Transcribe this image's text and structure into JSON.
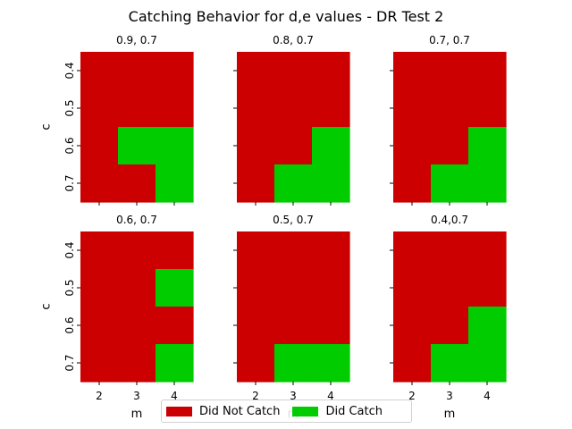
{
  "chart_data": {
    "type": "heatmap",
    "title": "Catching Behavior for d,e values - DR Test 2",
    "xlabel": "m",
    "ylabel": "c",
    "x_categories": [
      "2",
      "3",
      "4"
    ],
    "y_categories": [
      "0.4",
      "0.5",
      "0.6",
      "0.7"
    ],
    "colors": {
      "not_caught": "#cc0000",
      "caught": "#00cc00"
    },
    "legend": {
      "placement": "bottom-center",
      "entries": [
        "Did Not Catch",
        "Did Catch"
      ]
    },
    "panels": [
      {
        "title": "0.9, 0.7",
        "values": [
          [
            0,
            0,
            0
          ],
          [
            0,
            0,
            0
          ],
          [
            0,
            1,
            1
          ],
          [
            0,
            0,
            1
          ]
        ]
      },
      {
        "title": "0.8, 0.7",
        "values": [
          [
            0,
            0,
            0
          ],
          [
            0,
            0,
            0
          ],
          [
            0,
            0,
            1
          ],
          [
            0,
            1,
            1
          ]
        ]
      },
      {
        "title": "0.7, 0.7",
        "values": [
          [
            0,
            0,
            0
          ],
          [
            0,
            0,
            0
          ],
          [
            0,
            0,
            1
          ],
          [
            0,
            1,
            1
          ]
        ]
      },
      {
        "title": "0.6, 0.7",
        "values": [
          [
            0,
            0,
            0
          ],
          [
            0,
            0,
            1
          ],
          [
            0,
            0,
            0
          ],
          [
            0,
            0,
            1
          ]
        ]
      },
      {
        "title": "0.5, 0.7",
        "values": [
          [
            0,
            0,
            0
          ],
          [
            0,
            0,
            0
          ],
          [
            0,
            0,
            0
          ],
          [
            0,
            1,
            1
          ]
        ]
      },
      {
        "title": "0.4,0.7",
        "values": [
          [
            0,
            0,
            0
          ],
          [
            0,
            0,
            0
          ],
          [
            0,
            0,
            1
          ],
          [
            0,
            1,
            1
          ]
        ]
      }
    ]
  }
}
